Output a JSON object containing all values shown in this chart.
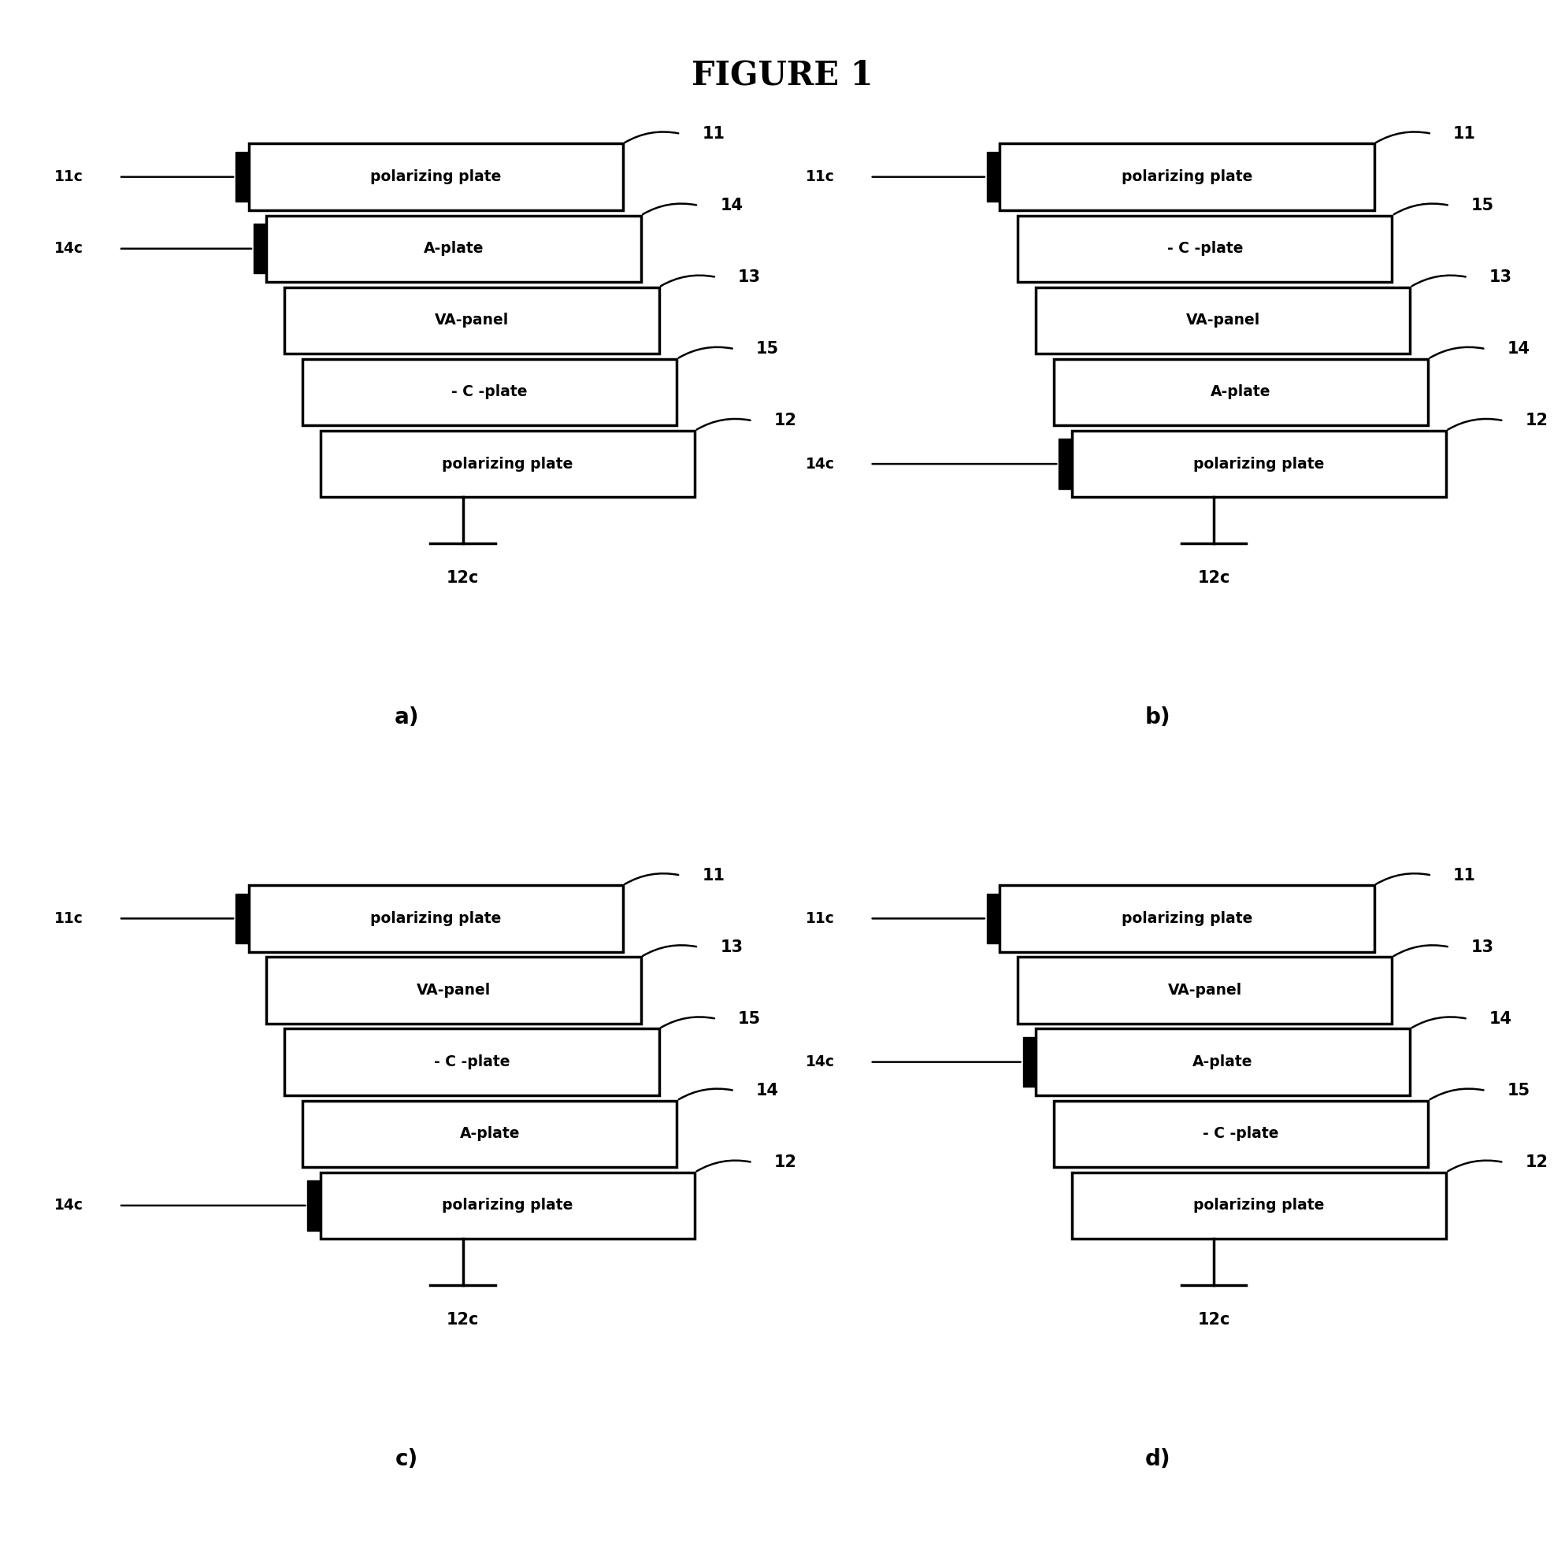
{
  "title": "FIGURE 1",
  "background": "#ffffff",
  "panels": {
    "a": {
      "label": "a)",
      "layers": [
        {
          "text": "polarizing plate",
          "ref": "11"
        },
        {
          "text": "A-plate",
          "ref": "14"
        },
        {
          "text": "VA-panel",
          "ref": "13"
        },
        {
          "text": "- C -plate",
          "ref": "15"
        },
        {
          "text": "polarizing plate",
          "ref": "12"
        }
      ],
      "left_markers": [
        {
          "label": "11c",
          "layer_idx": 0
        },
        {
          "label": "14c",
          "layer_idx": 1
        }
      ],
      "bottom_marker": "12c"
    },
    "b": {
      "label": "b)",
      "layers": [
        {
          "text": "polarizing plate",
          "ref": "11"
        },
        {
          "text": "- C -plate",
          "ref": "15"
        },
        {
          "text": "VA-panel",
          "ref": "13"
        },
        {
          "text": "A-plate",
          "ref": "14"
        },
        {
          "text": "polarizing plate",
          "ref": "12"
        }
      ],
      "left_markers": [
        {
          "label": "11c",
          "layer_idx": 0
        },
        {
          "label": "14c",
          "layer_idx": 4
        }
      ],
      "bottom_marker": "12c"
    },
    "c": {
      "label": "c)",
      "layers": [
        {
          "text": "polarizing plate",
          "ref": "11"
        },
        {
          "text": "VA-panel",
          "ref": "13"
        },
        {
          "text": "- C -plate",
          "ref": "15"
        },
        {
          "text": "A-plate",
          "ref": "14"
        },
        {
          "text": "polarizing plate",
          "ref": "12"
        }
      ],
      "left_markers": [
        {
          "label": "11c",
          "layer_idx": 0
        },
        {
          "label": "14c",
          "layer_idx": 4
        }
      ],
      "bottom_marker": "12c"
    },
    "d": {
      "label": "d)",
      "layers": [
        {
          "text": "polarizing plate",
          "ref": "11"
        },
        {
          "text": "VA-panel",
          "ref": "13"
        },
        {
          "text": "A-plate",
          "ref": "14"
        },
        {
          "text": "- C -plate",
          "ref": "15"
        },
        {
          "text": "polarizing plate",
          "ref": "12"
        }
      ],
      "left_markers": [
        {
          "label": "11c",
          "layer_idx": 0
        },
        {
          "label": "14c",
          "layer_idx": 2
        }
      ],
      "bottom_marker": "12c"
    }
  }
}
